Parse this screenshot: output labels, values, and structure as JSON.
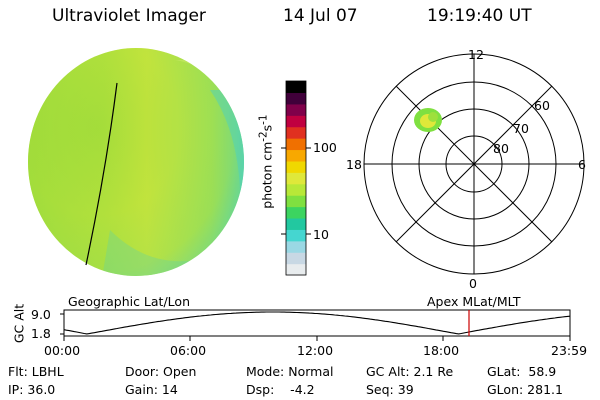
{
  "header": {
    "instrument": "Ultraviolet Imager",
    "date": "14 Jul 07",
    "time": "19:19:40 UT"
  },
  "colorbar": {
    "label_html": "photon cm<sup>-2</sup>s<sup>-1</sup>",
    "ticks": [
      "100",
      "10"
    ],
    "colors": [
      "#e8ecee",
      "#c8d8e4",
      "#9ad8e4",
      "#45d6d0",
      "#22c8a0",
      "#3cd460",
      "#7fe040",
      "#b8e838",
      "#dfe83a",
      "#f0d800",
      "#f8a800",
      "#f07000",
      "#e03020",
      "#c00040",
      "#80004a",
      "#40003a",
      "#000000"
    ]
  },
  "polar": {
    "labels": {
      "top": "12",
      "bottom": "0",
      "left": "18",
      "right": "6"
    },
    "lat_labels": [
      "60",
      "70",
      "80"
    ]
  },
  "altitude_strip": {
    "left_title": "Geographic Lat/Lon",
    "right_title": "Apex MLat/MLT",
    "ylabel": "GC Alt",
    "y_ticks": [
      "9.0",
      "1.8"
    ],
    "x_ticks": [
      "00:00",
      "06:00",
      "12:00",
      "18:00",
      "23:59"
    ],
    "marker_color": "#cc0000",
    "curve_color": "#000000"
  },
  "info": {
    "flt": "Flt: LBHL",
    "ip": "IP: 36.0",
    "door": "Door: Open",
    "gain": "Gain: 14",
    "mode": "Mode: Normal",
    "dsp": "Dsp:    -4.2",
    "gcalt": "GC Alt: 2.1 Re",
    "seq": "Seq: 39",
    "glat": "GLat:  58.9",
    "glon": "GLon: 281.1"
  }
}
